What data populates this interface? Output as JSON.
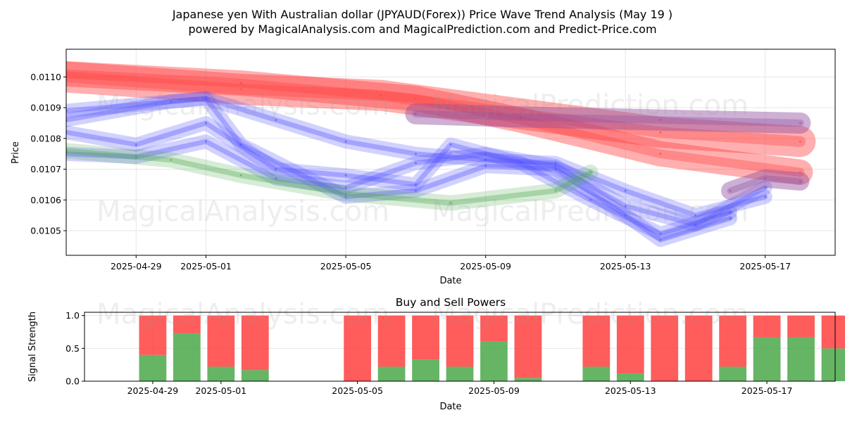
{
  "page": {
    "title_line1": "Japanese yen With Australian dollar (JPYAUD(Forex)) Price Wave Trend Analysis (May 19 )",
    "title_line2": "powered by MagicalAnalysis.com and MagicalPrediction.com and Predict-Price.com",
    "watermarks": [
      "MagicalAnalysis.com",
      "MagicalPrediction.com"
    ]
  },
  "colors": {
    "red": "#ff4040",
    "blue": "#5050ff",
    "green": "#4aa84a",
    "purple": "#9050a0",
    "axis": "#000000",
    "grid": "#e6e6e6"
  },
  "chart_data": [
    {
      "type": "line",
      "title": "",
      "xlabel": "Date",
      "ylabel": "Price",
      "xlim": [
        "2025-04-27",
        "2025-05-19"
      ],
      "ylim": [
        0.01042,
        0.01109
      ],
      "grid": true,
      "xticks": [
        "2025-04-29",
        "2025-05-01",
        "2025-05-05",
        "2025-05-09",
        "2025-05-13",
        "2025-05-17"
      ],
      "yticks": [
        "0.0105",
        "0.0106",
        "0.0107",
        "0.0108",
        "0.0109",
        "0.0110"
      ],
      "ytick_values": [
        0.0105,
        0.0106,
        0.0107,
        0.0108,
        0.0109,
        0.011
      ],
      "series": [
        {
          "name": "red-wave-1",
          "color": "red",
          "x": [
            "2025-04-27",
            "2025-05-02",
            "2025-05-06",
            "2025-05-10",
            "2025-05-14",
            "2025-05-18"
          ],
          "y": [
            0.011,
            0.01096,
            0.01094,
            0.01088,
            0.01082,
            0.01079
          ]
        },
        {
          "name": "red-wave-2",
          "color": "red",
          "x": [
            "2025-04-27",
            "2025-05-02",
            "2025-05-07",
            "2025-05-10",
            "2025-05-14",
            "2025-05-18"
          ],
          "y": [
            0.01101,
            0.01098,
            0.01093,
            0.01086,
            0.01075,
            0.01069
          ]
        },
        {
          "name": "purple-band",
          "color": "purple",
          "x": [
            "2025-05-07",
            "2025-05-10",
            "2025-05-14",
            "2025-05-18"
          ],
          "y": [
            0.01088,
            0.01087,
            0.01086,
            0.01085
          ]
        },
        {
          "name": "blue-wave-1",
          "color": "blue",
          "x": [
            "2025-04-27",
            "2025-04-30",
            "2025-05-01",
            "2025-05-03",
            "2025-05-05",
            "2025-05-07",
            "2025-05-09",
            "2025-05-11",
            "2025-05-13",
            "2025-05-15",
            "2025-05-17"
          ],
          "y": [
            0.01086,
            0.01092,
            0.01093,
            0.01086,
            0.01079,
            0.01075,
            0.01073,
            0.01072,
            0.01063,
            0.01055,
            0.01061
          ]
        },
        {
          "name": "blue-wave-2",
          "color": "blue",
          "x": [
            "2025-04-27",
            "2025-04-29",
            "2025-05-01",
            "2025-05-03",
            "2025-05-05",
            "2025-05-07",
            "2025-05-09",
            "2025-05-11",
            "2025-05-13",
            "2025-05-15",
            "2025-05-17"
          ],
          "y": [
            0.01075,
            0.01074,
            0.01079,
            0.01067,
            0.01064,
            0.01072,
            0.01075,
            0.01071,
            0.01058,
            0.01052,
            0.01064
          ]
        },
        {
          "name": "blue-wave-3",
          "color": "blue",
          "x": [
            "2025-04-27",
            "2025-04-29",
            "2025-05-01",
            "2025-05-03",
            "2025-05-05",
            "2025-05-07",
            "2025-05-08",
            "2025-05-10",
            "2025-05-12",
            "2025-05-14",
            "2025-05-16"
          ],
          "y": [
            0.01082,
            0.01078,
            0.01085,
            0.0107,
            0.01068,
            0.01065,
            0.01078,
            0.01072,
            0.0106,
            0.01049,
            0.01056
          ]
        },
        {
          "name": "blue-wave-4",
          "color": "blue",
          "x": [
            "2025-04-27",
            "2025-05-01",
            "2025-05-02",
            "2025-05-05",
            "2025-05-07",
            "2025-05-09",
            "2025-05-11",
            "2025-05-13",
            "2025-05-14",
            "2025-05-16"
          ],
          "y": [
            0.01089,
            0.01093,
            0.01078,
            0.01061,
            0.01063,
            0.01071,
            0.0107,
            0.01055,
            0.01047,
            0.01054
          ]
        },
        {
          "name": "green-wave",
          "color": "green",
          "x": [
            "2025-04-27",
            "2025-04-30",
            "2025-05-02",
            "2025-05-05",
            "2025-05-08",
            "2025-05-11",
            "2025-05-12"
          ],
          "y": [
            0.01076,
            0.01073,
            0.01068,
            0.01062,
            0.01059,
            0.01063,
            0.01069
          ]
        },
        {
          "name": "late-wave",
          "color": "purple",
          "x": [
            "2025-05-16",
            "2025-05-17",
            "2025-05-18"
          ],
          "y": [
            0.01063,
            0.01067,
            0.01066
          ]
        }
      ]
    },
    {
      "type": "bar",
      "title": "Buy and Sell Powers",
      "xlabel": "Date",
      "ylabel": "Signal Strength",
      "ylim": [
        0,
        1.05
      ],
      "xlim": [
        "2025-04-27",
        "2025-05-19"
      ],
      "grid": true,
      "xticks": [
        "2025-04-29",
        "2025-05-01",
        "2025-05-05",
        "2025-05-09",
        "2025-05-13",
        "2025-05-17"
      ],
      "yticks": [
        "0.0",
        "0.5",
        "1.0"
      ],
      "ytick_values": [
        0,
        0.5,
        1.0
      ],
      "categories": [
        "2025-04-29",
        "2025-04-30",
        "2025-05-01",
        "2025-05-02",
        "2025-05-05",
        "2025-05-06",
        "2025-05-07",
        "2025-05-08",
        "2025-05-09",
        "2025-05-10",
        "2025-05-12",
        "2025-05-13",
        "2025-05-14",
        "2025-05-15",
        "2025-05-16",
        "2025-05-17",
        "2025-05-18",
        "2025-05-19"
      ],
      "series": [
        {
          "name": "Buy",
          "color": "green",
          "values": [
            0.4,
            0.73,
            0.22,
            0.17,
            0.0,
            0.22,
            0.33,
            0.22,
            0.61,
            0.05,
            0.22,
            0.12,
            0.0,
            0.0,
            0.22,
            0.67,
            0.67,
            0.5
          ]
        },
        {
          "name": "Sell",
          "color": "red",
          "values": [
            0.6,
            0.27,
            0.78,
            0.83,
            1.0,
            0.78,
            0.67,
            0.78,
            0.39,
            0.95,
            0.78,
            0.88,
            1.0,
            1.0,
            0.78,
            0.33,
            0.33,
            0.5
          ]
        }
      ]
    }
  ]
}
